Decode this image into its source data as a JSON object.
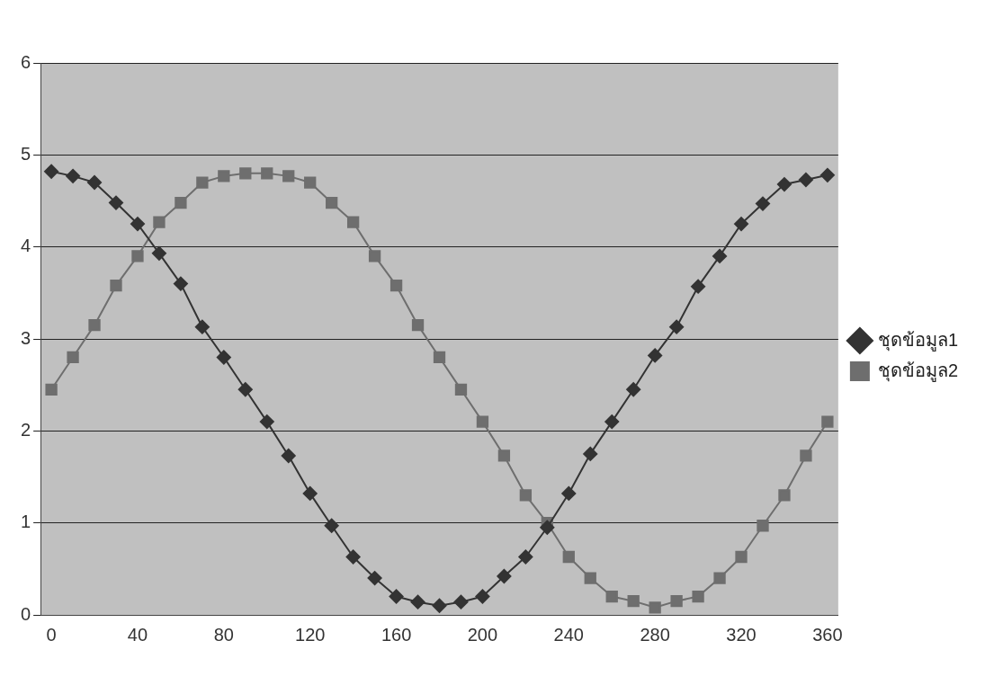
{
  "chart_data": {
    "type": "line",
    "categories": [
      "0",
      null,
      null,
      null,
      "40",
      null,
      null,
      null,
      "80",
      null,
      null,
      null,
      "120",
      null,
      null,
      null,
      "160",
      null,
      null,
      null,
      "200",
      null,
      null,
      null,
      "240",
      null,
      null,
      null,
      "280",
      null,
      null,
      null,
      "320",
      null,
      null,
      null,
      "360"
    ],
    "series": [
      {
        "name": "ชุดข้อมูล1",
        "color": "#333333",
        "marker": "diamond",
        "values": [
          4.82,
          4.77,
          4.7,
          4.48,
          4.25,
          3.93,
          3.6,
          3.13,
          2.8,
          2.45,
          2.1,
          1.73,
          1.32,
          0.97,
          0.63,
          0.4,
          0.2,
          0.14,
          0.1,
          0.14,
          0.2,
          0.42,
          0.63,
          0.95,
          1.32,
          1.75,
          2.1,
          2.45,
          2.82,
          3.13,
          3.57,
          3.9,
          4.25,
          4.47,
          4.68,
          4.73,
          4.78
        ]
      },
      {
        "name": "ชุดข้อมูล2",
        "color": "#6e6e6e",
        "marker": "square",
        "values": [
          2.45,
          2.8,
          3.15,
          3.58,
          3.9,
          4.27,
          4.48,
          4.7,
          4.77,
          4.8,
          4.8,
          4.77,
          4.7,
          4.48,
          4.27,
          3.9,
          3.58,
          3.15,
          2.8,
          2.45,
          2.1,
          1.73,
          1.3,
          1.0,
          0.63,
          0.4,
          0.2,
          0.15,
          0.08,
          0.15,
          0.2,
          0.4,
          0.63,
          0.97,
          1.3,
          1.73,
          2.1
        ]
      }
    ],
    "ylim": [
      0,
      6
    ],
    "yticks": [
      0,
      1,
      2,
      3,
      4,
      5,
      6
    ],
    "grid": "y",
    "legend": "right",
    "line_style": "solid"
  }
}
